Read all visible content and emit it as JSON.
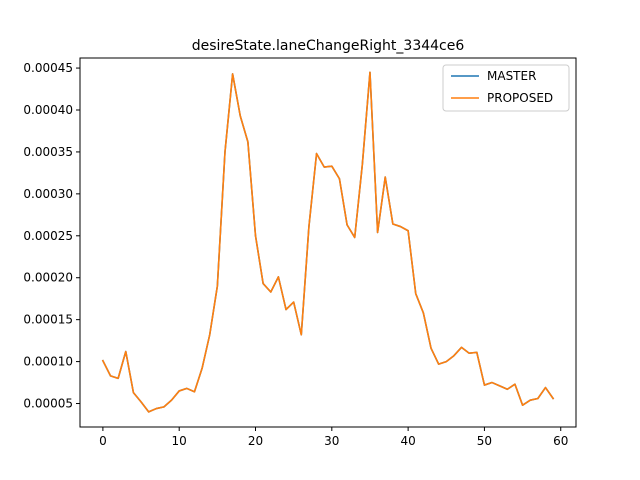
{
  "chart_data": {
    "type": "line",
    "title": "desireState.laneChangeRight_3344ce6",
    "xlabel": "",
    "ylabel": "",
    "xlim": [
      -3,
      62
    ],
    "ylim": [
      2.2e-05,
      0.000462
    ],
    "xticks": [
      0,
      10,
      20,
      30,
      40,
      50,
      60
    ],
    "yticks": [
      5e-05,
      0.0001,
      0.00015,
      0.0002,
      0.00025,
      0.0003,
      0.00035,
      0.0004,
      0.00045
    ],
    "ytick_labels": [
      "0.00005",
      "0.00010",
      "0.00015",
      "0.00020",
      "0.00025",
      "0.00030",
      "0.00035",
      "0.00040",
      "0.00045"
    ],
    "grid": false,
    "legend_position": "top-right",
    "x": [
      0,
      1,
      2,
      3,
      4,
      5,
      6,
      7,
      8,
      9,
      10,
      11,
      12,
      13,
      14,
      15,
      16,
      17,
      18,
      19,
      20,
      21,
      22,
      23,
      24,
      25,
      26,
      27,
      28,
      29,
      30,
      31,
      32,
      33,
      34,
      35,
      36,
      37,
      38,
      39,
      40,
      41,
      42,
      43,
      44,
      45,
      46,
      47,
      48,
      49,
      50,
      51,
      52,
      53,
      54,
      55,
      56,
      57,
      58,
      59
    ],
    "series": [
      {
        "name": "MASTER",
        "color": "#1f77b4",
        "values": [
          0.000101,
          8.3e-05,
          8e-05,
          0.000112,
          6.3e-05,
          5.2e-05,
          4e-05,
          4.4e-05,
          4.6e-05,
          5.4e-05,
          6.5e-05,
          6.8e-05,
          6.4e-05,
          9.2e-05,
          0.000132,
          0.00019,
          0.00035,
          0.000443,
          0.000393,
          0.000362,
          0.00025,
          0.000193,
          0.000183,
          0.000201,
          0.000162,
          0.000171,
          0.000132,
          0.000261,
          0.000348,
          0.000332,
          0.000333,
          0.000318,
          0.000263,
          0.000248,
          0.000335,
          0.000445,
          0.000254,
          0.00032,
          0.000264,
          0.000261,
          0.000256,
          0.000181,
          0.000158,
          0.000116,
          9.7e-05,
          0.0001,
          0.000107,
          0.000117,
          0.00011,
          0.000111,
          7.2e-05,
          7.5e-05,
          7.1e-05,
          6.7e-05,
          7.3e-05,
          4.8e-05,
          5.4e-05,
          5.6e-05,
          6.9e-05,
          5.6e-05
        ]
      },
      {
        "name": "PROPOSED",
        "color": "#ff7f0e",
        "values": [
          0.000101,
          8.3e-05,
          8e-05,
          0.000112,
          6.3e-05,
          5.2e-05,
          4e-05,
          4.4e-05,
          4.6e-05,
          5.4e-05,
          6.5e-05,
          6.8e-05,
          6.4e-05,
          9.2e-05,
          0.000132,
          0.00019,
          0.00035,
          0.000443,
          0.000393,
          0.000362,
          0.00025,
          0.000193,
          0.000183,
          0.000201,
          0.000162,
          0.000171,
          0.000132,
          0.000261,
          0.000348,
          0.000332,
          0.000333,
          0.000318,
          0.000263,
          0.000248,
          0.000335,
          0.000445,
          0.000254,
          0.00032,
          0.000264,
          0.000261,
          0.000256,
          0.000181,
          0.000158,
          0.000116,
          9.7e-05,
          0.0001,
          0.000107,
          0.000117,
          0.00011,
          0.000111,
          7.2e-05,
          7.5e-05,
          7.1e-05,
          6.7e-05,
          7.3e-05,
          4.8e-05,
          5.4e-05,
          5.6e-05,
          6.9e-05,
          5.6e-05
        ]
      }
    ]
  }
}
